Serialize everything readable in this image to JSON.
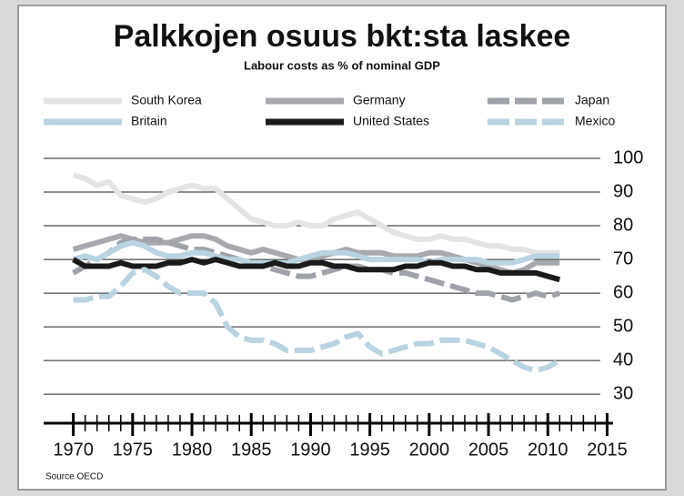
{
  "chart_data": {
    "type": "line",
    "title": "Palkkojen osuus bkt:sta laskee",
    "subtitle": "Labour costs as % of nominal GDP",
    "source": "Source OECD",
    "x": [
      1970,
      1971,
      1972,
      1973,
      1974,
      1975,
      1976,
      1977,
      1978,
      1979,
      1980,
      1981,
      1982,
      1983,
      1984,
      1985,
      1986,
      1987,
      1988,
      1989,
      1990,
      1991,
      1992,
      1993,
      1994,
      1995,
      1996,
      1997,
      1998,
      1999,
      2000,
      2001,
      2002,
      2003,
      2004,
      2005,
      2006,
      2007,
      2008,
      2009,
      2010,
      2011
    ],
    "series": [
      {
        "name": "South Korea",
        "color": "#e4e4e4",
        "dash": false,
        "values": [
          95,
          94,
          92,
          93,
          89,
          88,
          87,
          88,
          90,
          91,
          92,
          91,
          91,
          88,
          85,
          82,
          81,
          80,
          80,
          81,
          80,
          80,
          82,
          83,
          84,
          82,
          80,
          78,
          77,
          76,
          76,
          77,
          76,
          76,
          75,
          74,
          74,
          73,
          73,
          72,
          72,
          72
        ]
      },
      {
        "name": "Germany",
        "color": "#a8a9ae",
        "dash": false,
        "values": [
          73,
          74,
          75,
          76,
          77,
          76,
          75,
          75,
          75,
          76,
          77,
          77,
          76,
          74,
          73,
          72,
          73,
          72,
          71,
          70,
          70,
          71,
          72,
          73,
          72,
          72,
          72,
          71,
          71,
          71,
          72,
          72,
          71,
          70,
          69,
          68,
          67,
          66,
          67,
          69,
          69,
          69
        ]
      },
      {
        "name": "Japan",
        "color": "#9fa3a9",
        "dash": true,
        "values": [
          66,
          68,
          70,
          72,
          75,
          76,
          76,
          76,
          75,
          74,
          73,
          73,
          72,
          71,
          70,
          69,
          68,
          67,
          66,
          65,
          65,
          66,
          67,
          68,
          68,
          67,
          67,
          66,
          66,
          65,
          64,
          63,
          62,
          61,
          60,
          60,
          59,
          58,
          59,
          60,
          59,
          60
        ]
      },
      {
        "name": "Britain",
        "color": "#b9d3e0",
        "dash": false,
        "values": [
          70,
          71,
          70,
          72,
          74,
          75,
          74,
          72,
          71,
          71,
          72,
          72,
          71,
          70,
          70,
          69,
          69,
          69,
          69,
          70,
          71,
          72,
          72,
          72,
          71,
          70,
          70,
          70,
          70,
          70,
          69,
          70,
          70,
          70,
          70,
          69,
          69,
          69,
          70,
          71,
          71,
          71
        ]
      },
      {
        "name": "United States",
        "color": "#1a1a1a",
        "dash": false,
        "values": [
          70,
          68,
          68,
          68,
          69,
          68,
          68,
          68,
          69,
          69,
          70,
          69,
          70,
          69,
          68,
          68,
          68,
          69,
          68,
          68,
          69,
          69,
          68,
          68,
          67,
          67,
          67,
          67,
          68,
          68,
          69,
          69,
          68,
          68,
          67,
          67,
          66,
          66,
          66,
          66,
          65,
          64
        ]
      },
      {
        "name": "Mexico",
        "color": "#b9d3e0",
        "dash": true,
        "values": [
          58,
          58,
          59,
          59,
          62,
          66,
          67,
          65,
          62,
          60,
          60,
          60,
          57,
          50,
          47,
          46,
          46,
          45,
          43,
          43,
          43,
          44,
          45,
          47,
          48,
          44,
          42,
          43,
          44,
          45,
          45,
          46,
          46,
          46,
          45,
          44,
          42,
          40,
          38,
          37,
          38,
          40
        ]
      }
    ],
    "xlim": [
      1967.5,
      2015.5
    ],
    "xticks": [
      1970,
      1975,
      1980,
      1985,
      1990,
      1995,
      2000,
      2005,
      2010,
      2015
    ],
    "xminorticks": [
      1971,
      1972,
      1973,
      1974,
      1976,
      1977,
      1978,
      1979,
      1981,
      1982,
      1983,
      1984,
      1986,
      1987,
      1988,
      1989,
      1991,
      1992,
      1993,
      1994,
      1996,
      1997,
      1998,
      1999,
      2001,
      2002,
      2003,
      2004,
      2006,
      2007,
      2008,
      2009,
      2011,
      2012,
      2013,
      2014
    ],
    "ylim": [
      21.4,
      100
    ],
    "yticks": [
      30,
      40,
      50,
      60,
      70,
      80,
      90,
      100
    ],
    "grid": true
  }
}
